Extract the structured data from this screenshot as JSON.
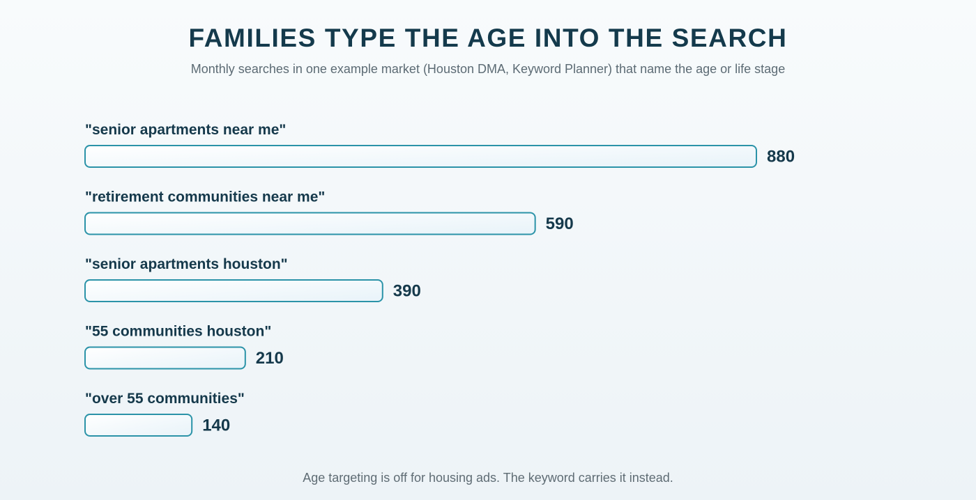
{
  "header": {
    "title": "FAMILIES TYPE THE AGE INTO THE SEARCH",
    "subtitle": "Monthly searches in one example market (Houston DMA, Keyword Planner) that name the age or life stage"
  },
  "footer": {
    "note": "Age targeting is off for housing ads. The keyword carries it instead."
  },
  "chart_data": {
    "type": "bar",
    "orientation": "horizontal",
    "categories": [
      "\"senior apartments near me\"",
      "\"retirement communities near me\"",
      "\"senior apartments houston\"",
      "\"55 communities houston\"",
      "\"over 55 communities\""
    ],
    "values": [
      880,
      590,
      390,
      210,
      140
    ],
    "xlim": [
      0,
      880
    ],
    "grid": false,
    "data_labels": true,
    "colors": {
      "bar_fill_start": "#ffffff",
      "bar_fill_end": "#e8f3f9",
      "bar_stroke": "#2b93a8",
      "label_text": "#15394b",
      "value_text": "#15394b"
    }
  }
}
